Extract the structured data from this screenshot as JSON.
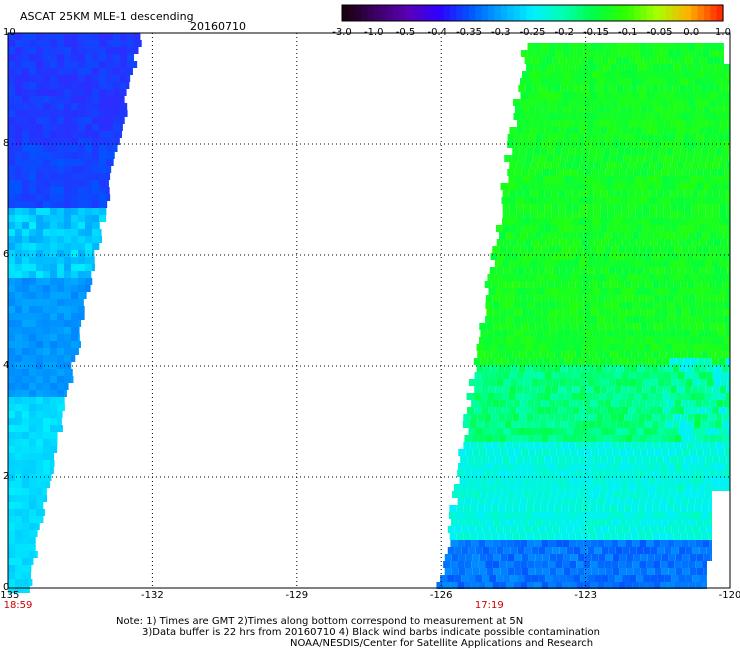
{
  "header": {
    "title": "ASCAT 25KM MLE-1 descending",
    "date": "20160710"
  },
  "colorbar": {
    "labels": [
      "-3.0",
      "-1.0",
      "-0.5",
      "-0.4",
      "-0.35",
      "-0.3",
      "-0.25",
      "-0.2",
      "-0.15",
      "-0.1",
      "-0.05",
      "0.0",
      "1.0"
    ],
    "colors": [
      "#1a0010",
      "#3b0066",
      "#5a00b4",
      "#2e00ff",
      "#0055ff",
      "#00a8ff",
      "#00f0ff",
      "#00ffb0",
      "#00ff40",
      "#30ff00",
      "#a8ff00",
      "#ffb000",
      "#ff2a00"
    ]
  },
  "axes": {
    "x_ticks": [
      "-135",
      "-132",
      "-129",
      "-126",
      "-123",
      "-120"
    ],
    "x_values": [
      -135,
      -132,
      -129,
      -126,
      -123,
      -120
    ],
    "y_ticks": [
      "10",
      "8",
      "6",
      "4",
      "2",
      "0"
    ],
    "y_values": [
      10,
      8,
      6,
      4,
      2,
      0
    ],
    "lon_range": [
      -135,
      -120
    ],
    "lat_range": [
      0,
      10
    ],
    "grid": true
  },
  "time_labels": [
    {
      "text": "18:59",
      "lon": -135
    },
    {
      "text": "17:19",
      "lon": -125
    }
  ],
  "footer": {
    "note_line1": "Note: 1) Times are GMT 2)Times along bottom correspond to measurement at 5N",
    "note_line2": "3)Data buffer is 22 hrs from 20160710 4) Black wind barbs indicate possible contamination",
    "credit": "NOAA/NESDIS/Center for Satellite Applications and Research"
  },
  "swaths": {
    "west": {
      "lon_range": [
        -135,
        -132.5
      ],
      "lat_range": [
        0,
        10
      ],
      "dominant_colors": [
        "#0055ff",
        "#00a8ff",
        "#00f0ff"
      ]
    },
    "east": {
      "lon_range": [
        -126.5,
        -120
      ],
      "lat_range": [
        0,
        10
      ],
      "dominant_colors": [
        "#00ff40",
        "#00ffb0",
        "#00f0ff",
        "#0055ff"
      ]
    }
  }
}
